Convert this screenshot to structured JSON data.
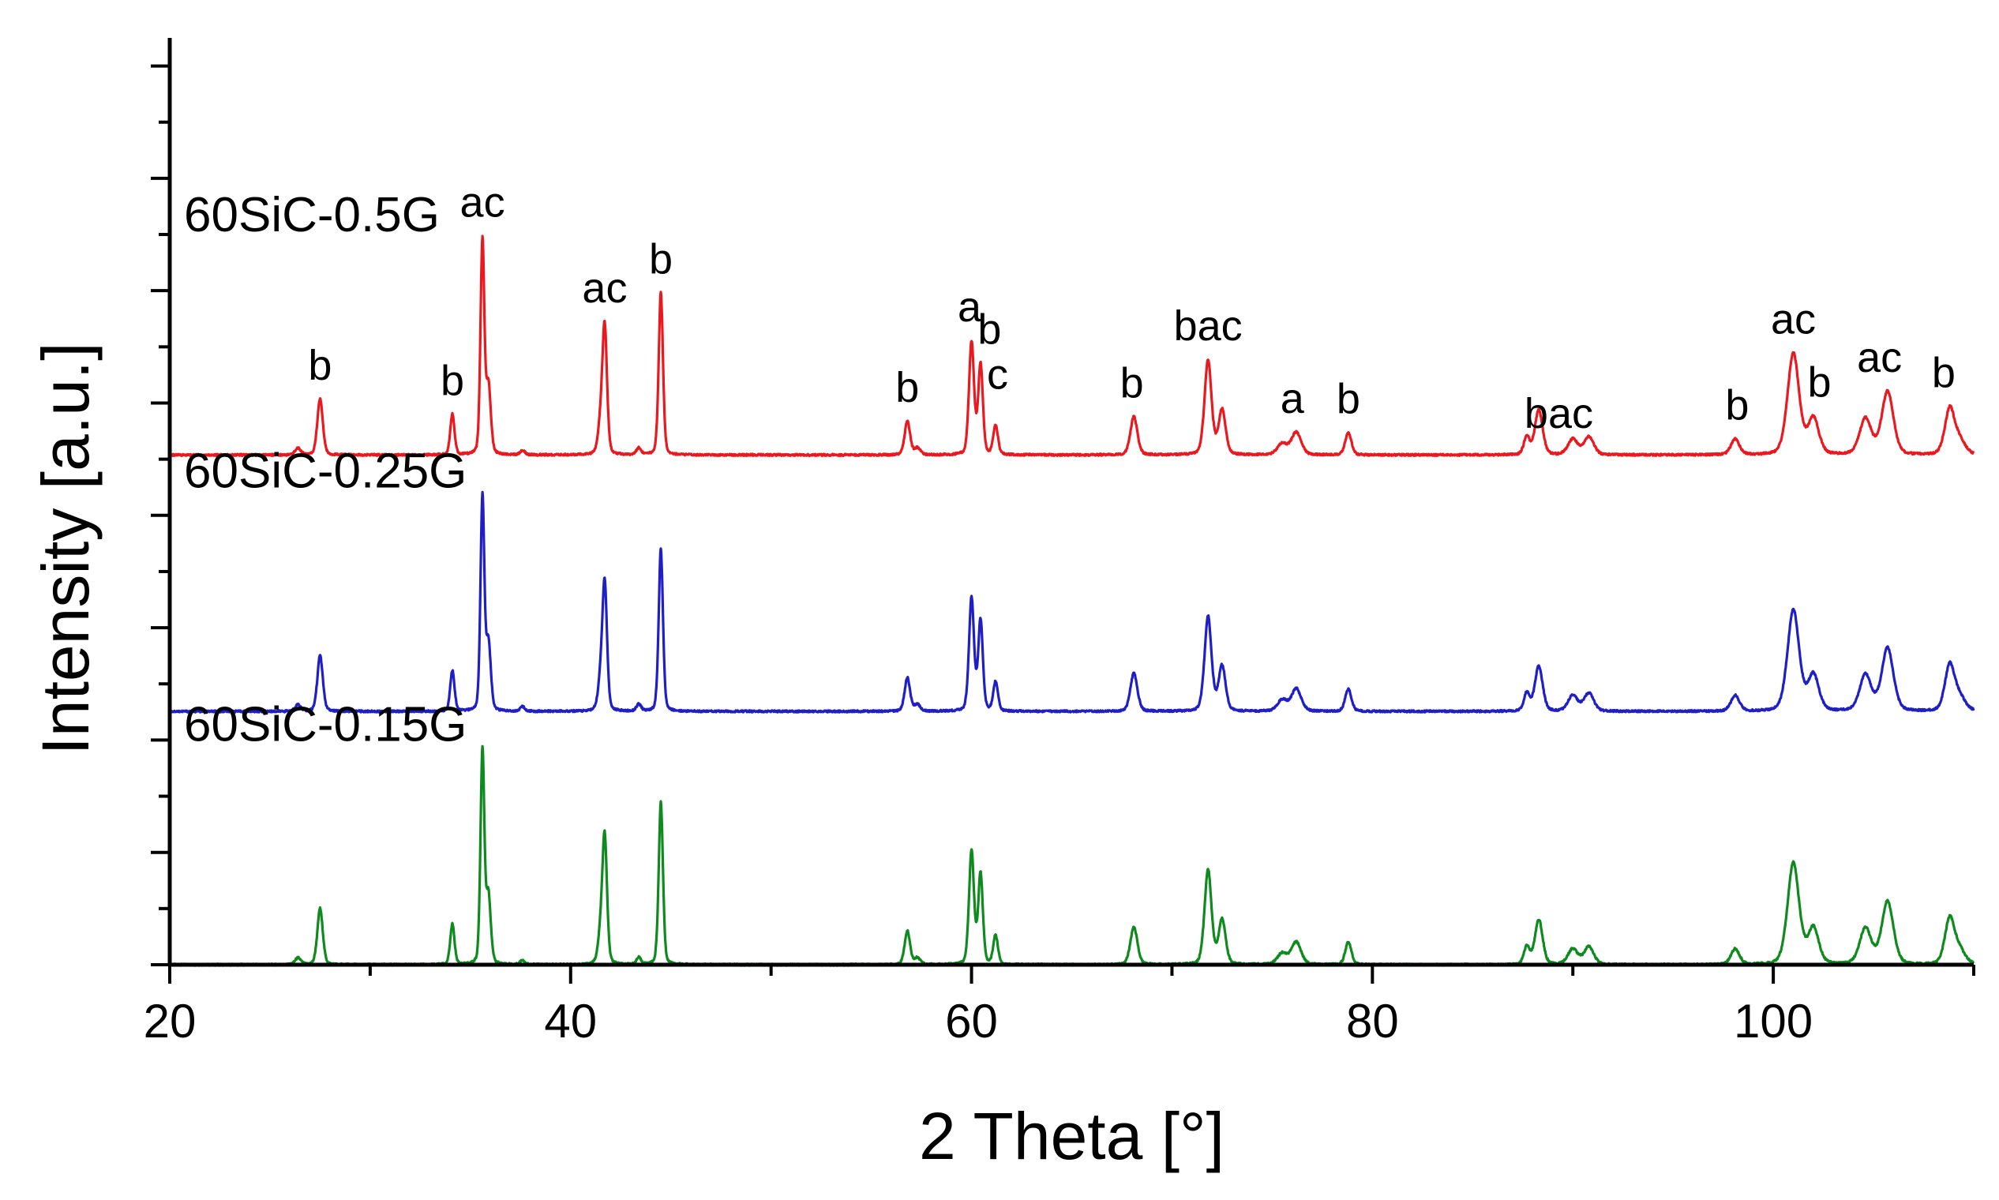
{
  "chart_data": {
    "type": "line",
    "title": "",
    "xlabel": "2 Theta [°]",
    "ylabel": "Intensity [a.u.]",
    "xlim": [
      20,
      110
    ],
    "ylim": [
      0,
      3
    ],
    "x_ticks": [
      20,
      40,
      60,
      80,
      100
    ],
    "x_tick_labels": [
      "20",
      "40",
      "60",
      "80",
      "100"
    ],
    "grid": false,
    "series": [
      {
        "name": "60SiC-0.15G",
        "color": "#0f8a1e",
        "offset": 0,
        "scale": 0.73,
        "peaks": [
          {
            "x": 26.4,
            "h": 0.03,
            "w": 0.15
          },
          {
            "x": 27.5,
            "h": 0.25,
            "w": 0.14
          },
          {
            "x": 34.1,
            "h": 0.18,
            "w": 0.11
          },
          {
            "x": 35.6,
            "h": 0.95,
            "w": 0.1
          },
          {
            "x": 35.9,
            "h": 0.3,
            "w": 0.12
          },
          {
            "x": 37.6,
            "h": 0.02,
            "w": 0.12
          },
          {
            "x": 41.7,
            "h": 0.55,
            "w": 0.12
          },
          {
            "x": 41.5,
            "h": 0.12,
            "w": 0.14
          },
          {
            "x": 43.4,
            "h": 0.03,
            "w": 0.12
          },
          {
            "x": 44.5,
            "h": 0.72,
            "w": 0.11
          },
          {
            "x": 56.8,
            "h": 0.15,
            "w": 0.14
          },
          {
            "x": 57.3,
            "h": 0.03,
            "w": 0.15
          },
          {
            "x": 60.0,
            "h": 0.5,
            "w": 0.13
          },
          {
            "x": 60.45,
            "h": 0.4,
            "w": 0.12
          },
          {
            "x": 61.2,
            "h": 0.13,
            "w": 0.12
          },
          {
            "x": 68.1,
            "h": 0.17,
            "w": 0.18
          },
          {
            "x": 71.8,
            "h": 0.42,
            "w": 0.18
          },
          {
            "x": 72.5,
            "h": 0.2,
            "w": 0.18
          },
          {
            "x": 75.5,
            "h": 0.05,
            "w": 0.25
          },
          {
            "x": 76.2,
            "h": 0.1,
            "w": 0.25
          },
          {
            "x": 78.8,
            "h": 0.1,
            "w": 0.16
          },
          {
            "x": 87.7,
            "h": 0.08,
            "w": 0.15
          },
          {
            "x": 88.3,
            "h": 0.2,
            "w": 0.2
          },
          {
            "x": 90.0,
            "h": 0.07,
            "w": 0.25
          },
          {
            "x": 90.8,
            "h": 0.08,
            "w": 0.25
          },
          {
            "x": 98.1,
            "h": 0.07,
            "w": 0.22
          },
          {
            "x": 101.0,
            "h": 0.45,
            "w": 0.3
          },
          {
            "x": 102.0,
            "h": 0.16,
            "w": 0.28
          },
          {
            "x": 104.6,
            "h": 0.16,
            "w": 0.3
          },
          {
            "x": 105.7,
            "h": 0.28,
            "w": 0.3
          },
          {
            "x": 108.8,
            "h": 0.2,
            "w": 0.25
          },
          {
            "x": 109.3,
            "h": 0.06,
            "w": 0.3
          }
        ]
      },
      {
        "name": "60SiC-0.25G",
        "color": "#1f1fc4",
        "offset": 0.82,
        "scale": 0.73,
        "peaks": [
          {
            "x": 26.4,
            "h": 0.03,
            "w": 0.15
          },
          {
            "x": 27.5,
            "h": 0.25,
            "w": 0.14
          },
          {
            "x": 34.1,
            "h": 0.18,
            "w": 0.11
          },
          {
            "x": 35.6,
            "h": 0.95,
            "w": 0.1
          },
          {
            "x": 35.9,
            "h": 0.3,
            "w": 0.12
          },
          {
            "x": 37.6,
            "h": 0.02,
            "w": 0.12
          },
          {
            "x": 41.7,
            "h": 0.55,
            "w": 0.12
          },
          {
            "x": 41.5,
            "h": 0.12,
            "w": 0.14
          },
          {
            "x": 43.4,
            "h": 0.03,
            "w": 0.12
          },
          {
            "x": 44.5,
            "h": 0.72,
            "w": 0.11
          },
          {
            "x": 56.8,
            "h": 0.15,
            "w": 0.14
          },
          {
            "x": 57.3,
            "h": 0.03,
            "w": 0.15
          },
          {
            "x": 60.0,
            "h": 0.5,
            "w": 0.13
          },
          {
            "x": 60.45,
            "h": 0.4,
            "w": 0.12
          },
          {
            "x": 61.2,
            "h": 0.13,
            "w": 0.12
          },
          {
            "x": 68.1,
            "h": 0.17,
            "w": 0.18
          },
          {
            "x": 71.8,
            "h": 0.42,
            "w": 0.18
          },
          {
            "x": 72.5,
            "h": 0.2,
            "w": 0.18
          },
          {
            "x": 75.5,
            "h": 0.05,
            "w": 0.25
          },
          {
            "x": 76.2,
            "h": 0.1,
            "w": 0.25
          },
          {
            "x": 78.8,
            "h": 0.1,
            "w": 0.16
          },
          {
            "x": 87.7,
            "h": 0.08,
            "w": 0.15
          },
          {
            "x": 88.3,
            "h": 0.2,
            "w": 0.2
          },
          {
            "x": 90.0,
            "h": 0.07,
            "w": 0.25
          },
          {
            "x": 90.8,
            "h": 0.08,
            "w": 0.25
          },
          {
            "x": 98.1,
            "h": 0.07,
            "w": 0.22
          },
          {
            "x": 101.0,
            "h": 0.45,
            "w": 0.3
          },
          {
            "x": 102.0,
            "h": 0.16,
            "w": 0.28
          },
          {
            "x": 104.6,
            "h": 0.16,
            "w": 0.3
          },
          {
            "x": 105.7,
            "h": 0.28,
            "w": 0.3
          },
          {
            "x": 108.8,
            "h": 0.2,
            "w": 0.25
          },
          {
            "x": 109.3,
            "h": 0.06,
            "w": 0.3
          }
        ]
      },
      {
        "name": "60SiC-0.5G",
        "color": "#e8191f",
        "offset": 1.65,
        "scale": 0.73,
        "peaks": [
          {
            "x": 26.4,
            "h": 0.03,
            "w": 0.15
          },
          {
            "x": 27.5,
            "h": 0.25,
            "w": 0.14
          },
          {
            "x": 34.1,
            "h": 0.18,
            "w": 0.11
          },
          {
            "x": 35.6,
            "h": 0.95,
            "w": 0.1
          },
          {
            "x": 35.9,
            "h": 0.3,
            "w": 0.12
          },
          {
            "x": 37.6,
            "h": 0.02,
            "w": 0.12
          },
          {
            "x": 41.7,
            "h": 0.55,
            "w": 0.12
          },
          {
            "x": 41.5,
            "h": 0.12,
            "w": 0.14
          },
          {
            "x": 43.4,
            "h": 0.03,
            "w": 0.12
          },
          {
            "x": 44.5,
            "h": 0.72,
            "w": 0.11
          },
          {
            "x": 56.8,
            "h": 0.15,
            "w": 0.14
          },
          {
            "x": 57.3,
            "h": 0.03,
            "w": 0.15
          },
          {
            "x": 60.0,
            "h": 0.5,
            "w": 0.13
          },
          {
            "x": 60.45,
            "h": 0.4,
            "w": 0.12
          },
          {
            "x": 61.2,
            "h": 0.13,
            "w": 0.12
          },
          {
            "x": 68.1,
            "h": 0.17,
            "w": 0.18
          },
          {
            "x": 71.8,
            "h": 0.42,
            "w": 0.18
          },
          {
            "x": 72.5,
            "h": 0.2,
            "w": 0.18
          },
          {
            "x": 75.5,
            "h": 0.05,
            "w": 0.25
          },
          {
            "x": 76.2,
            "h": 0.1,
            "w": 0.25
          },
          {
            "x": 78.8,
            "h": 0.1,
            "w": 0.16
          },
          {
            "x": 87.7,
            "h": 0.08,
            "w": 0.15
          },
          {
            "x": 88.3,
            "h": 0.2,
            "w": 0.2
          },
          {
            "x": 90.0,
            "h": 0.07,
            "w": 0.25
          },
          {
            "x": 90.8,
            "h": 0.08,
            "w": 0.25
          },
          {
            "x": 98.1,
            "h": 0.07,
            "w": 0.22
          },
          {
            "x": 101.0,
            "h": 0.45,
            "w": 0.3
          },
          {
            "x": 102.0,
            "h": 0.16,
            "w": 0.28
          },
          {
            "x": 104.6,
            "h": 0.16,
            "w": 0.3
          },
          {
            "x": 105.7,
            "h": 0.28,
            "w": 0.3
          },
          {
            "x": 108.8,
            "h": 0.2,
            "w": 0.25
          },
          {
            "x": 109.3,
            "h": 0.06,
            "w": 0.3
          }
        ]
      }
    ],
    "peak_labels": [
      {
        "text": "b",
        "x": 27.5
      },
      {
        "text": "b",
        "x": 34.1
      },
      {
        "text": "ac",
        "x": 35.6
      },
      {
        "text": "ac",
        "x": 41.7
      },
      {
        "text": "b",
        "x": 44.5
      },
      {
        "text": "b",
        "x": 56.8
      },
      {
        "text": "a",
        "x": 59.9
      },
      {
        "text": "b",
        "x": 60.9
      },
      {
        "text": "c",
        "x": 61.3
      },
      {
        "text": "b",
        "x": 68.0
      },
      {
        "text": "bac",
        "x": 71.8
      },
      {
        "text": "a",
        "x": 76.0
      },
      {
        "text": "b",
        "x": 78.8
      },
      {
        "text": "bac",
        "x": 89.3
      },
      {
        "text": "b",
        "x": 98.2
      },
      {
        "text": "ac",
        "x": 101.0
      },
      {
        "text": "b",
        "x": 102.3
      },
      {
        "text": "ac",
        "x": 105.3
      },
      {
        "text": "b",
        "x": 108.5
      }
    ]
  }
}
